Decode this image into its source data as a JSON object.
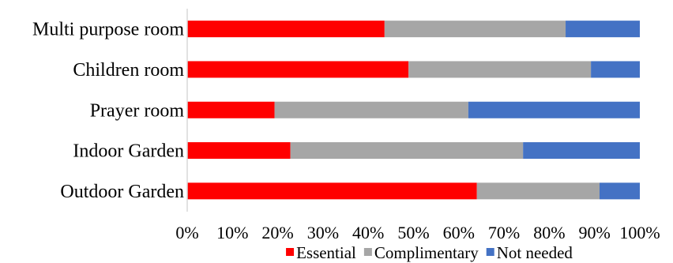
{
  "chart_data": {
    "type": "bar",
    "orientation": "horizontal",
    "stacked": true,
    "percent": true,
    "title": "",
    "xlabel": "",
    "ylabel": "",
    "xlim": [
      0,
      100
    ],
    "x_ticks": [
      "0%",
      "10%",
      "20%",
      "30%",
      "40%",
      "50%",
      "60%",
      "70%",
      "80%",
      "90%",
      "100%"
    ],
    "categories": [
      "Multi purpose room",
      "Children room",
      "Prayer room",
      "Indoor Garden",
      "Outdoor Garden"
    ],
    "series": [
      {
        "name": "Essential",
        "color": "#ff0000",
        "values": [
          43.6,
          48.9,
          19.3,
          22.8,
          64.0
        ]
      },
      {
        "name": "Complimentary",
        "color": "#a6a6a6",
        "values": [
          40.0,
          40.3,
          42.8,
          51.4,
          27.1
        ]
      },
      {
        "name": "Not needed",
        "color": "#4472c4",
        "values": [
          16.4,
          10.8,
          37.9,
          25.8,
          8.9
        ]
      }
    ],
    "grid": false,
    "legend_position": "bottom"
  }
}
